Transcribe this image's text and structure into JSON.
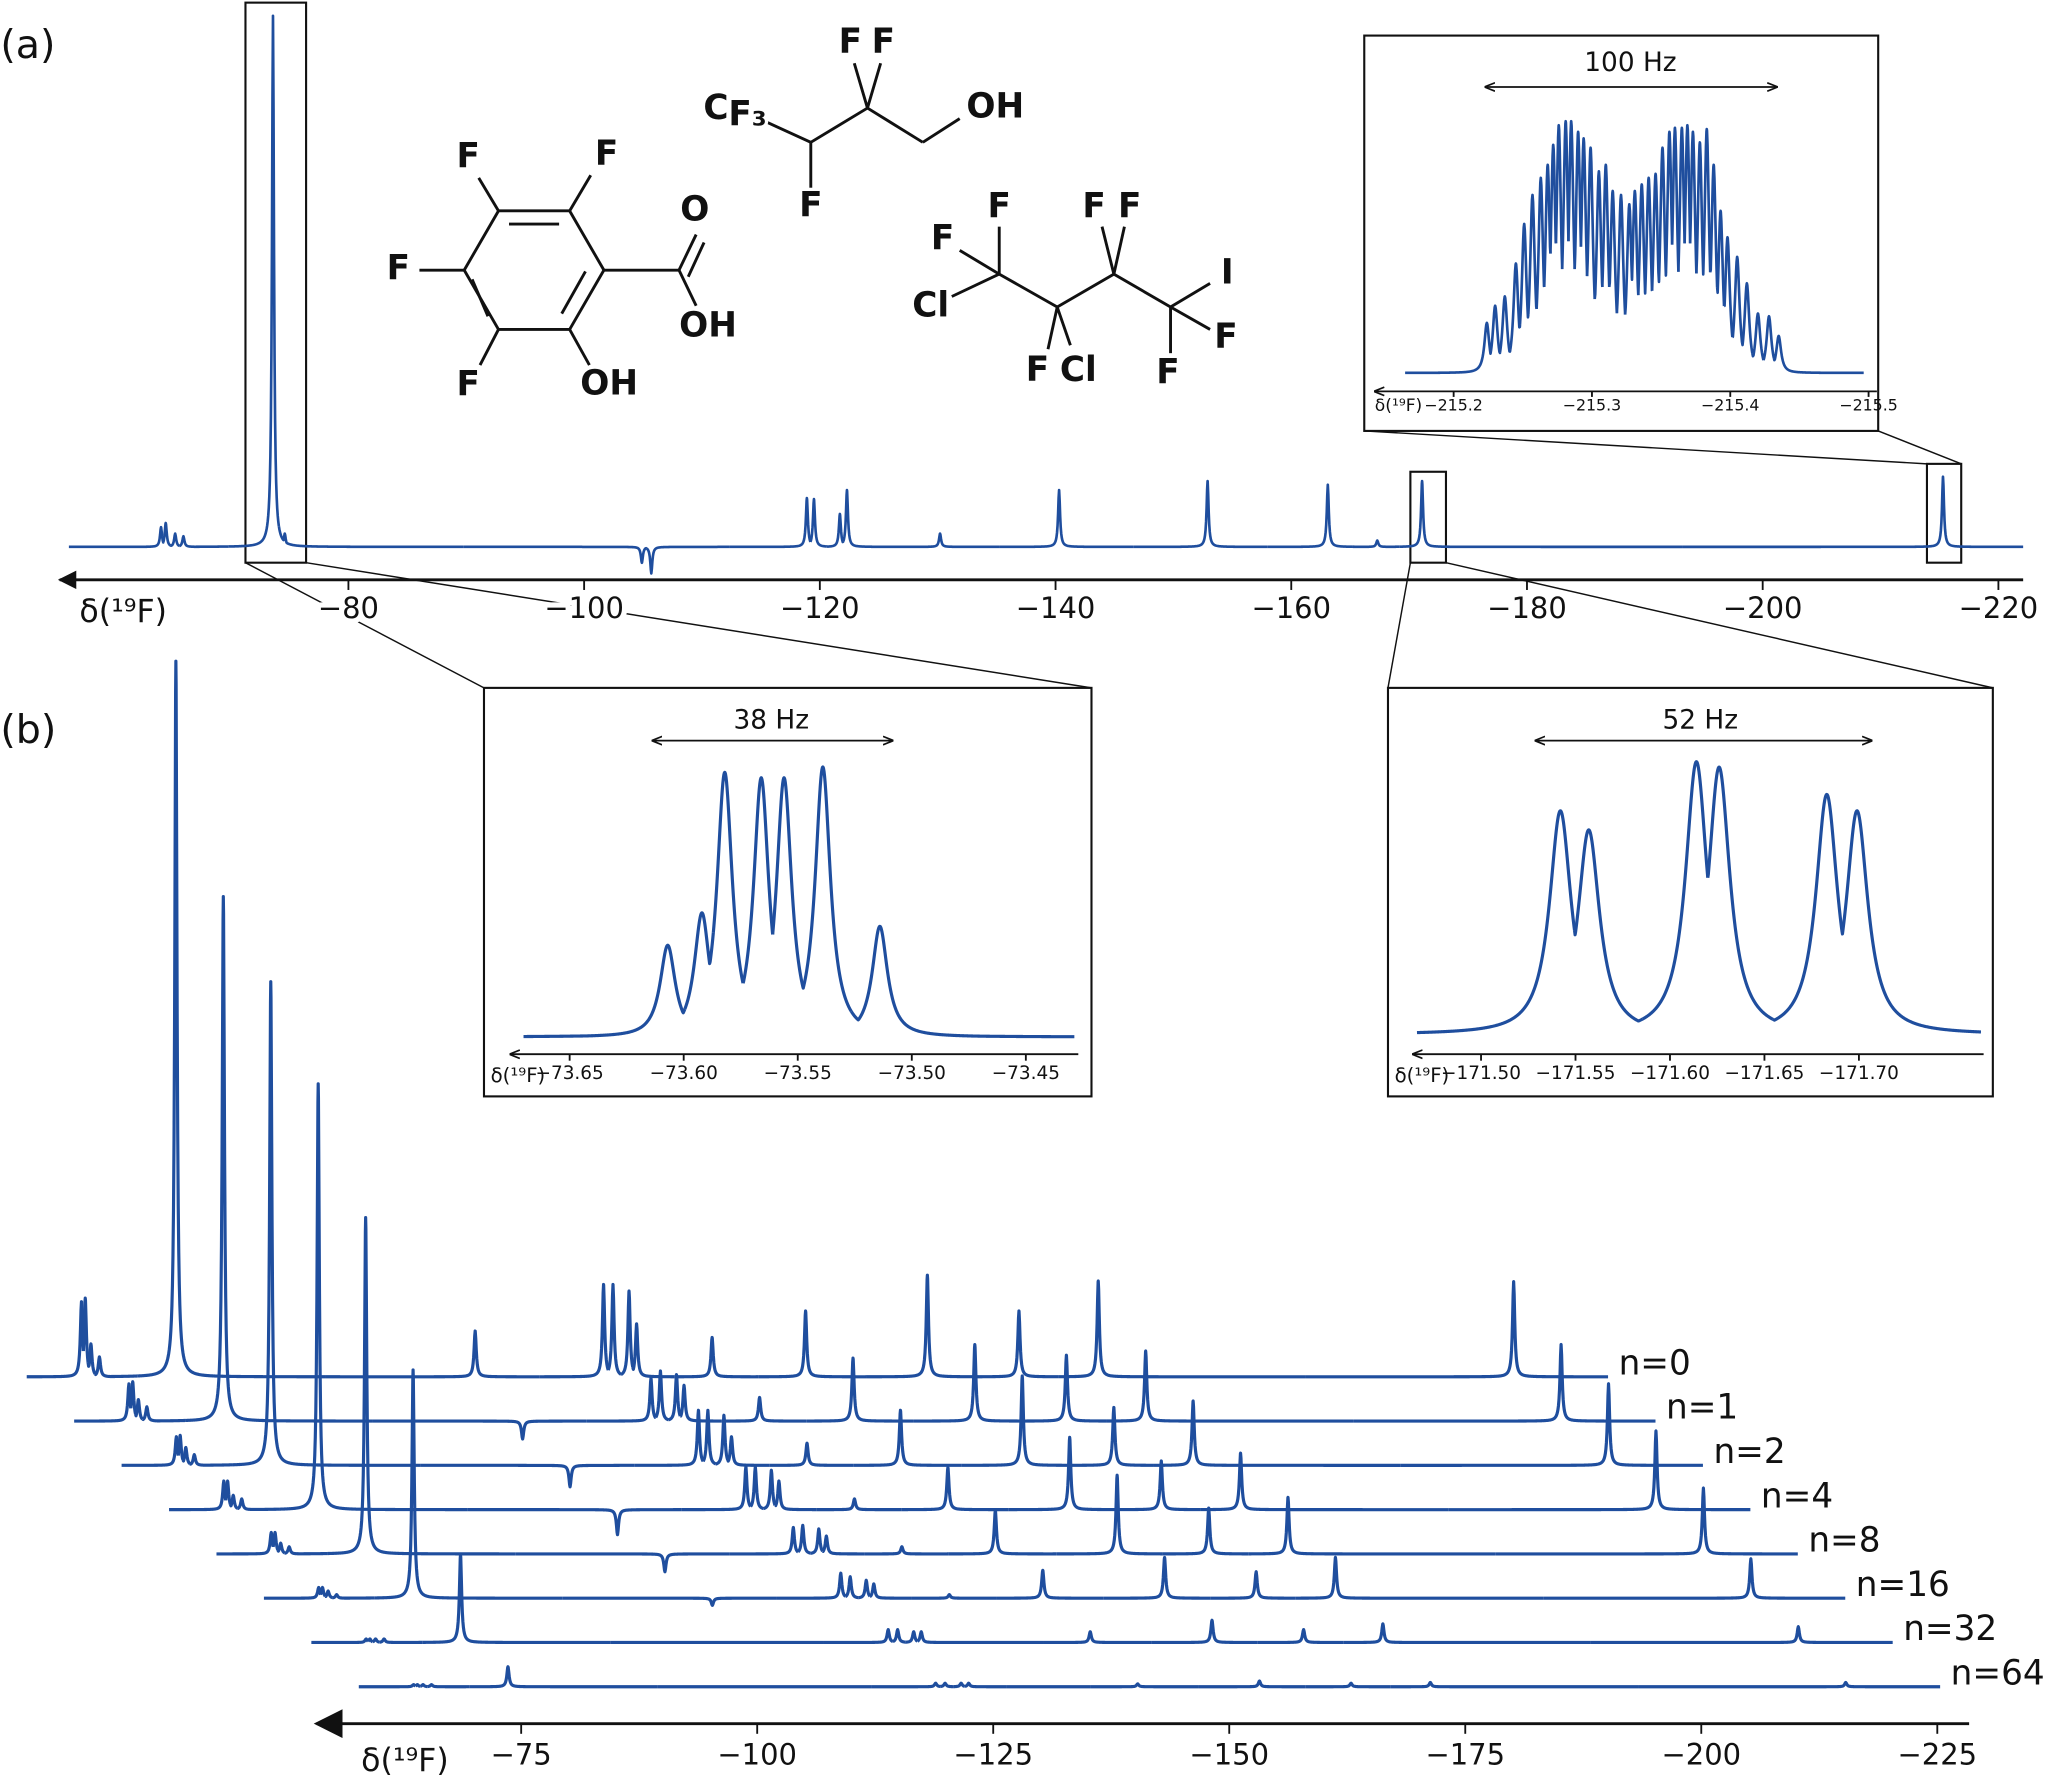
{
  "chart_data": [
    {
      "type": "spectrum",
      "panel_label": "(a)",
      "x_label": "δ(¹⁹F)",
      "color": "#1f4e9e",
      "xlim": [
        -55.5,
        -222.1
      ],
      "xticks": [
        {
          "value": -80,
          "label": "−80"
        },
        {
          "value": -100,
          "label": "−100"
        },
        {
          "value": -120,
          "label": "−120"
        },
        {
          "value": -140,
          "label": "−140"
        },
        {
          "value": -160,
          "label": "−160"
        },
        {
          "value": -180,
          "label": "−180"
        },
        {
          "value": -200,
          "label": "−200"
        },
        {
          "value": -220,
          "label": "−220"
        }
      ],
      "x": [
        -64.1,
        -64.5,
        -65.3,
        -66.0,
        -73.6,
        -74.6,
        -104.9,
        -105.7,
        -118.9,
        -119.5,
        -121.7,
        -122.3,
        -130.2,
        -140.3,
        -152.9,
        -163.1,
        -167.3,
        -171.1,
        -215.3
      ],
      "values": [
        3.7,
        4.5,
        2.5,
        2,
        100,
        2.5,
        -3,
        -5,
        9.2,
        9,
        6.2,
        10.7,
        2.5,
        10.7,
        12.4,
        11.7,
        1.2,
        12.4,
        13.2
      ]
    },
    {
      "type": "spectrum",
      "annotation": "100 Hz",
      "x_label": "δ(¹⁹F)",
      "color": "#1f4e9e",
      "xlim": [
        -215.143,
        -215.506
      ],
      "xticks": [
        {
          "value": -215.2,
          "label": "−215.2"
        },
        {
          "value": -215.3,
          "label": "−215.3"
        },
        {
          "value": -215.4,
          "label": "−215.4"
        },
        {
          "value": -215.5,
          "label": "−215.5"
        }
      ],
      "x": [
        -215.224,
        -215.23,
        -215.237,
        -215.245,
        -215.251,
        -215.257,
        -215.263,
        -215.268,
        -215.272,
        -215.276,
        -215.281,
        -215.285,
        -215.29,
        -215.294,
        -215.299,
        -215.305,
        -215.31,
        -215.315,
        -215.321,
        -215.327,
        -215.331,
        -215.336,
        -215.341,
        -215.346,
        -215.351,
        -215.356,
        -215.36,
        -215.365,
        -215.369,
        -215.373,
        -215.378,
        -215.383,
        -215.388,
        -215.393,
        -215.398,
        -215.405,
        -215.412,
        -215.42,
        -215.428,
        -215.435
      ],
      "values": [
        19.9,
        26.7,
        30.4,
        43.5,
        59.2,
        70.7,
        77.5,
        82.7,
        90.6,
        98.4,
        100,
        100,
        95.8,
        93.2,
        89.5,
        80.1,
        82.7,
        72.3,
        70.7,
        67,
        72.3,
        74.9,
        77.5,
        79.1,
        89.5,
        95.8,
        97.4,
        97.4,
        98.4,
        95.8,
        91.6,
        96.9,
        82.7,
        64.4,
        53.9,
        46.1,
        35.6,
        23.6,
        22.5,
        14.7
      ]
    },
    {
      "type": "spectrum",
      "annotation": "38 Hz",
      "x_label": "δ(¹⁹F)",
      "color": "#1f4e9e",
      "xlim": [
        -73.676,
        -73.427
      ],
      "xticks": [
        {
          "value": -73.65,
          "label": "−73.65"
        },
        {
          "value": -73.6,
          "label": "−73.60"
        },
        {
          "value": -73.55,
          "label": "−73.55"
        },
        {
          "value": -73.5,
          "label": "−73.50"
        },
        {
          "value": -73.45,
          "label": "−73.45"
        }
      ],
      "x": [
        -73.607,
        -73.592,
        -73.582,
        -73.566,
        -73.556,
        -73.539,
        -73.514
      ],
      "values": [
        34,
        46,
        98,
        96,
        96,
        100,
        41
      ]
    },
    {
      "type": "spectrum",
      "annotation": "52 Hz",
      "x_label": "δ(¹⁹F)",
      "color": "#1f4e9e",
      "xlim": [
        -171.464,
        -171.766
      ],
      "xticks": [
        {
          "value": -171.5,
          "label": "−171.50"
        },
        {
          "value": -171.55,
          "label": "−171.55"
        },
        {
          "value": -171.6,
          "label": "−171.60"
        },
        {
          "value": -171.65,
          "label": "−171.65"
        },
        {
          "value": -171.7,
          "label": "−171.70"
        }
      ],
      "x": [
        -171.542,
        -171.557,
        -171.614,
        -171.626,
        -171.683,
        -171.699
      ],
      "values": [
        82,
        75,
        100,
        98,
        88,
        82
      ]
    },
    {
      "type": "stacked_spectra",
      "panel_label": "(b)",
      "x_label": "δ(¹⁹F)",
      "color": "#1f4e9e",
      "xlim": [
        -57.8,
        -225.3
      ],
      "xticks": [
        {
          "value": -75,
          "label": "−75"
        },
        {
          "value": -100,
          "label": "−100"
        },
        {
          "value": -125,
          "label": "−125"
        },
        {
          "value": -150,
          "label": "−150"
        },
        {
          "value": -175,
          "label": "−175"
        },
        {
          "value": -200,
          "label": "−200"
        },
        {
          "value": -225,
          "label": "−225"
        }
      ],
      "x": [
        -63.6,
        -64.0,
        -64.6,
        -65.5,
        -73.6,
        -105.3,
        -118.9,
        -119.9,
        -121.6,
        -122.4,
        -130.4,
        -140.3,
        -153.2,
        -162.9,
        -171.3,
        -215.3
      ],
      "series": [
        {
          "name": "n=0",
          "values": [
            10.5,
            11,
            4.6,
            2.8,
            100,
            6.4,
            12.9,
            12.9,
            12,
            7.4,
            5.5,
            9.2,
            14.2,
            9.2,
            13.4,
            13.3
          ]
        },
        {
          "name": "n=1",
          "values": [
            5.2,
            5.5,
            3,
            2,
            73.3,
            -2.5,
            6,
            7,
            6.5,
            5,
            3.3,
            8.8,
            10.7,
            9.2,
            9.8,
            10.7
          ]
        },
        {
          "name": "n=2",
          "values": [
            4,
            4.2,
            2.5,
            1.5,
            67.6,
            -3,
            7.7,
            7.7,
            7,
            4,
            3.1,
            7.7,
            12.5,
            8.1,
            9,
            11.4
          ]
        },
        {
          "name": "n=4",
          "values": [
            4,
            4,
            2,
            1.5,
            59.5,
            -3.5,
            6,
            6,
            5.5,
            4,
            1.5,
            5.9,
            10.1,
            6.8,
            7.9,
            11
          ]
        },
        {
          "name": "n=8",
          "values": [
            3,
            3,
            1.5,
            1,
            47,
            -2.5,
            3.7,
            4,
            3.5,
            2.5,
            1,
            6.1,
            11,
            6.4,
            7.9,
            9.2
          ]
        },
        {
          "name": "n=16",
          "values": [
            1.5,
            1.5,
            1,
            0.5,
            31.9,
            -1,
            3.5,
            3,
            2.5,
            2,
            0.5,
            3.9,
            5.7,
            3.7,
            5.7,
            5.5
          ]
        },
        {
          "name": "n=32",
          "values": [
            0.5,
            0.5,
            0.5,
            0.5,
            12.3,
            0,
            1.8,
            1.8,
            1.5,
            1.5,
            0,
            1.5,
            3.1,
            1.8,
            2.6,
            2.2
          ]
        },
        {
          "name": "n=64",
          "values": [
            0.3,
            0.3,
            0.3,
            0.3,
            2.8,
            0,
            0.5,
            0.5,
            0.5,
            0.5,
            0,
            0.4,
            0.8,
            0.5,
            0.6,
            0.6
          ]
        }
      ]
    }
  ],
  "structures": [
    {
      "atoms": [
        "F",
        "F",
        "F",
        "F",
        "OH",
        "O",
        "OH"
      ]
    },
    {
      "atoms": [
        "C",
        "F₃",
        "F",
        "F",
        "F",
        "OH"
      ]
    },
    {
      "atoms": [
        "F",
        "F",
        "Cl",
        "F",
        "Cl",
        "F",
        "F",
        "I",
        "F",
        "F"
      ]
    }
  ]
}
